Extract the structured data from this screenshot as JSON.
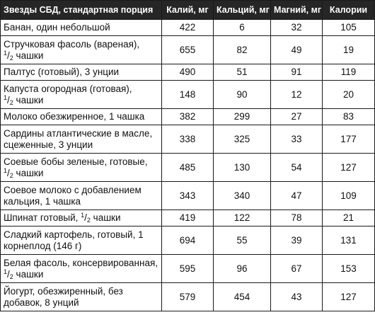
{
  "table": {
    "headers": [
      "Звезды СБД, стандартная порция",
      "Калий, мг",
      "Кальций, мг",
      "Магний, мг",
      "Калории"
    ],
    "frac_num": "1",
    "frac_den": "2",
    "rows": [
      {
        "name": "Банан, один небольшой",
        "potassium": "422",
        "calcium": "6",
        "magnesium": "32",
        "calories": "105"
      },
      {
        "name": "Стручковая фасоль (вареная),",
        "name_tail": " чашки",
        "potassium": "655",
        "calcium": "82",
        "magnesium": "49",
        "calories": "19"
      },
      {
        "name": "Палтус (готовый), 3 унции",
        "potassium": "490",
        "calcium": "51",
        "magnesium": "91",
        "calories": "119"
      },
      {
        "name": "Капуста огородная (готовая),",
        "name_tail": " чашки",
        "potassium": "148",
        "calcium": "90",
        "magnesium": "12",
        "calories": "20"
      },
      {
        "name": "Молоко обезжиренное, 1 чашка",
        "potassium": "382",
        "calcium": "299",
        "magnesium": "27",
        "calories": "83"
      },
      {
        "name": "Сардины атлантические в масле, сцеженные, 3 унции",
        "potassium": "338",
        "calcium": "325",
        "magnesium": "33",
        "calories": "177"
      },
      {
        "name": "Соевые бобы зеленые, готовые,",
        "name_tail": " чашки",
        "potassium": "485",
        "calcium": "130",
        "magnesium": "54",
        "calories": "127"
      },
      {
        "name": "Соевое молоко с добавлением кальция, 1 чашка",
        "potassium": "343",
        "calcium": "340",
        "magnesium": "47",
        "calories": "109"
      },
      {
        "name": "Шпинат готовый, ",
        "name_tail": " чашки",
        "potassium": "419",
        "calcium": "122",
        "magnesium": "78",
        "calories": "21"
      },
      {
        "name": "Сладкий картофель, готовый, 1 корнеплод (146 г)",
        "potassium": "694",
        "calcium": "55",
        "magnesium": "39",
        "calories": "131"
      },
      {
        "name": "Белая фасоль, консервированная,",
        "name_tail": " чашки",
        "potassium": "595",
        "calcium": "96",
        "magnesium": "67",
        "calories": "153"
      },
      {
        "name": "Йогурт, обезжиренный, без добавок, 8 унций",
        "potassium": "579",
        "calcium": "454",
        "magnesium": "43",
        "calories": "127"
      }
    ]
  }
}
